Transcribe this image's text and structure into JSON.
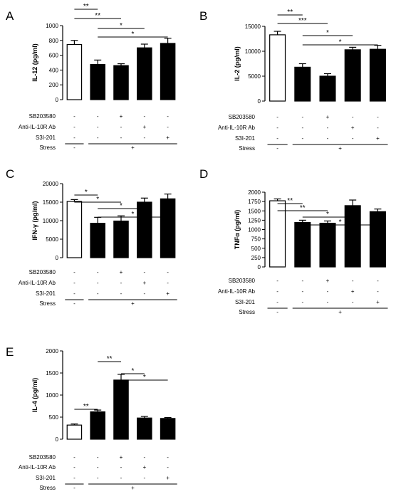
{
  "chart_data": [
    {
      "type": "bar",
      "panel": "A",
      "ylabel": "IL-12 (pg/ml)",
      "ylim": [
        0,
        1000
      ],
      "yticks": [
        0,
        200,
        400,
        600,
        800,
        1000
      ],
      "categories": [
        "Control",
        "Stress",
        "Stress + SB203580",
        "Stress + Anti-IL-10R Ab",
        "Stress + S3I-201"
      ],
      "values": [
        745,
        475,
        460,
        700,
        760
      ],
      "errors": [
        55,
        60,
        25,
        50,
        70
      ],
      "bar_colors": [
        "#ffffff",
        "#000000",
        "#000000",
        "#000000",
        "#000000"
      ],
      "treatment_rows": [
        {
          "label": "SB203580",
          "signs": [
            "-",
            "-",
            "+",
            "-",
            "-"
          ]
        },
        {
          "label": "Anti-IL-10R Ab",
          "signs": [
            "-",
            "-",
            "-",
            "+",
            "-"
          ]
        },
        {
          "label": "S3I-201",
          "signs": [
            "-",
            "-",
            "-",
            "-",
            "+"
          ]
        },
        {
          "label": "Stress",
          "signs": [
            "-",
            "+"
          ]
        }
      ],
      "significance": [
        {
          "from": 0,
          "to": 1,
          "label": "**"
        },
        {
          "from": 0,
          "to": 2,
          "label": "**"
        },
        {
          "from": 1,
          "to": 3,
          "label": "*"
        },
        {
          "from": 1,
          "to": 4,
          "label": "*"
        }
      ]
    },
    {
      "type": "bar",
      "panel": "B",
      "ylabel": "IL-2 (pg/ml)",
      "ylim": [
        0,
        15000
      ],
      "yticks": [
        0,
        5000,
        10000,
        15000
      ],
      "categories": [
        "Control",
        "Stress",
        "Stress + SB203580",
        "Stress + Anti-IL-10R Ab",
        "Stress + S3I-201"
      ],
      "values": [
        13300,
        6800,
        5000,
        10300,
        10400
      ],
      "errors": [
        700,
        700,
        500,
        500,
        800
      ],
      "bar_colors": [
        "#ffffff",
        "#000000",
        "#000000",
        "#000000",
        "#000000"
      ],
      "treatment_rows": [
        {
          "label": "SB203580",
          "signs": [
            "-",
            "-",
            "+",
            "-",
            "-"
          ]
        },
        {
          "label": "Anti-IL-10R Ab",
          "signs": [
            "-",
            "-",
            "-",
            "+",
            "-"
          ]
        },
        {
          "label": "S3I-201",
          "signs": [
            "-",
            "-",
            "-",
            "-",
            "+"
          ]
        },
        {
          "label": "Stress",
          "signs": [
            "-",
            "+"
          ]
        }
      ],
      "significance": [
        {
          "from": 0,
          "to": 1,
          "label": "**"
        },
        {
          "from": 0,
          "to": 2,
          "label": "***"
        },
        {
          "from": 1,
          "to": 3,
          "label": "*"
        },
        {
          "from": 1,
          "to": 4,
          "label": "*"
        }
      ]
    },
    {
      "type": "bar",
      "panel": "C",
      "ylabel": "IFN-γ (pg/ml)",
      "ylim": [
        0,
        20000
      ],
      "yticks": [
        0,
        5000,
        10000,
        15000,
        20000
      ],
      "categories": [
        "Control",
        "Stress",
        "Stress + SB203580",
        "Stress + Anti-IL-10R Ab",
        "Stress + S3I-201"
      ],
      "values": [
        15200,
        9300,
        9900,
        15000,
        15900
      ],
      "errors": [
        500,
        1600,
        1400,
        1100,
        1300
      ],
      "bar_colors": [
        "#ffffff",
        "#000000",
        "#000000",
        "#000000",
        "#000000"
      ],
      "treatment_rows": [
        {
          "label": "SB203580",
          "signs": [
            "-",
            "-",
            "+",
            "-",
            "-"
          ]
        },
        {
          "label": "Anti-IL-10R Ab",
          "signs": [
            "-",
            "-",
            "-",
            "+",
            "-"
          ]
        },
        {
          "label": "S3I-201",
          "signs": [
            "-",
            "-",
            "-",
            "-",
            "+"
          ]
        },
        {
          "label": "Stress",
          "signs": [
            "-",
            "+"
          ]
        }
      ],
      "significance": [
        {
          "from": 0,
          "to": 1,
          "label": "*"
        },
        {
          "from": 0,
          "to": 2,
          "label": "*"
        },
        {
          "from": 1,
          "to": 3,
          "label": "*"
        },
        {
          "from": 1,
          "to": 4,
          "label": "*"
        }
      ]
    },
    {
      "type": "bar",
      "panel": "D",
      "ylabel": "TNFα (pg/ml)",
      "ylim": [
        0,
        2000
      ],
      "yticks": [
        0,
        250,
        500,
        750,
        1000,
        1250,
        1500,
        1750,
        2000
      ],
      "categories": [
        "Control",
        "Stress",
        "Stress + SB203580",
        "Stress + Anti-IL-10R Ab",
        "Stress + S3I-201"
      ],
      "values": [
        1770,
        1190,
        1170,
        1640,
        1480
      ],
      "errors": [
        50,
        60,
        60,
        150,
        70
      ],
      "bar_colors": [
        "#ffffff",
        "#000000",
        "#000000",
        "#000000",
        "#000000"
      ],
      "treatment_rows": [
        {
          "label": "SB203580",
          "signs": [
            "-",
            "-",
            "+",
            "-",
            "-"
          ]
        },
        {
          "label": "Anti-IL-10R Ab",
          "signs": [
            "-",
            "-",
            "-",
            "+",
            "-"
          ]
        },
        {
          "label": "S3I-201",
          "signs": [
            "-",
            "-",
            "-",
            "-",
            "+"
          ]
        },
        {
          "label": "Stress",
          "signs": [
            "-",
            "+"
          ]
        }
      ],
      "significance": [
        {
          "from": 0,
          "to": 1,
          "label": "**"
        },
        {
          "from": 0,
          "to": 2,
          "label": "**"
        },
        {
          "from": 1,
          "to": 3,
          "label": "*"
        },
        {
          "from": 1,
          "to": 4,
          "label": "*"
        }
      ]
    },
    {
      "type": "bar",
      "panel": "E",
      "ylabel": "IL-4 (pg/ml)",
      "ylim": [
        0,
        2000
      ],
      "yticks": [
        0,
        500,
        1000,
        1500,
        2000
      ],
      "categories": [
        "Control",
        "Stress",
        "Stress + SB203580",
        "Stress + Anti-IL-10R Ab",
        "Stress + S3I-201"
      ],
      "values": [
        320,
        620,
        1340,
        480,
        470
      ],
      "errors": [
        25,
        40,
        130,
        35,
        20
      ],
      "bar_colors": [
        "#ffffff",
        "#000000",
        "#000000",
        "#000000",
        "#000000"
      ],
      "treatment_rows": [
        {
          "label": "SB203580",
          "signs": [
            "-",
            "-",
            "+",
            "-",
            "-"
          ]
        },
        {
          "label": "Anti-IL-10R Ab",
          "signs": [
            "-",
            "-",
            "-",
            "+",
            "-"
          ]
        },
        {
          "label": "S3I-201",
          "signs": [
            "-",
            "-",
            "-",
            "-",
            "+"
          ]
        },
        {
          "label": "Stress",
          "signs": [
            "-",
            "+"
          ]
        }
      ],
      "significance": [
        {
          "from": 0,
          "to": 1,
          "label": "**"
        },
        {
          "from": 1,
          "to": 2,
          "label": "**"
        },
        {
          "from": 2,
          "to": 3,
          "label": "*"
        },
        {
          "from": 2,
          "to": 4,
          "label": "*"
        }
      ]
    }
  ]
}
